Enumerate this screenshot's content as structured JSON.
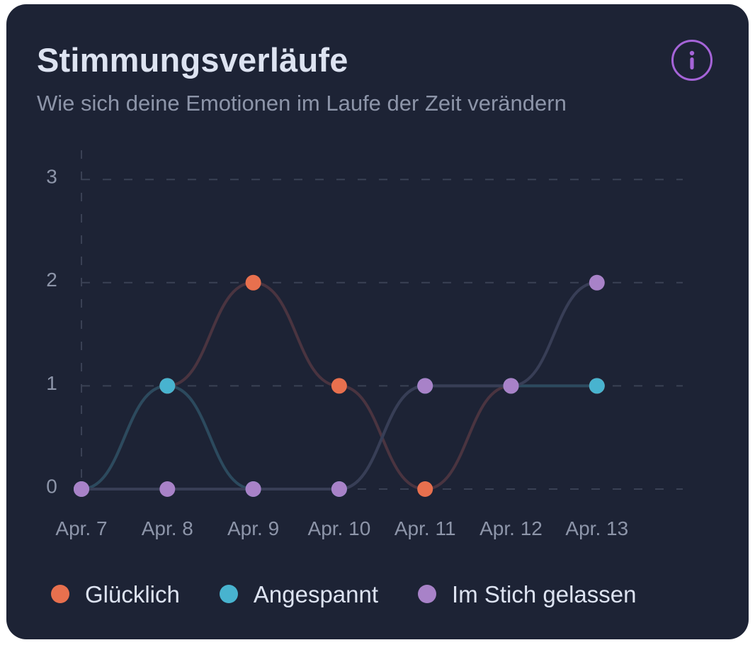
{
  "card": {
    "title": "Stimmungsverläufe",
    "subtitle": "Wie sich deine Emotionen im Laufe der Zeit verändern",
    "info_icon": "info-icon",
    "accent_color": "#a564d8"
  },
  "chart_data": {
    "type": "line",
    "curve": "smooth",
    "categories": [
      "Apr. 7",
      "Apr. 8",
      "Apr. 9",
      "Apr. 10",
      "Apr. 11",
      "Apr. 12",
      "Apr. 13"
    ],
    "yticks": [
      "0",
      "1",
      "2",
      "3"
    ],
    "ylim": [
      0,
      3
    ],
    "grid": "dashed",
    "legend_position": "bottom",
    "series": [
      {
        "name": "Glücklich",
        "color": "#e8704e",
        "line_color": "#4a3440",
        "values": [
          0,
          1,
          2,
          1,
          0,
          1,
          1
        ]
      },
      {
        "name": "Angespannt",
        "color": "#48b3cf",
        "line_color": "#2c4a5e",
        "values": [
          0,
          1,
          0,
          0,
          1,
          1,
          1
        ]
      },
      {
        "name": "Im Stich gelassen",
        "color": "#a882c8",
        "line_color": "#383e56",
        "values": [
          0,
          0,
          0,
          0,
          1,
          1,
          2
        ]
      }
    ]
  }
}
